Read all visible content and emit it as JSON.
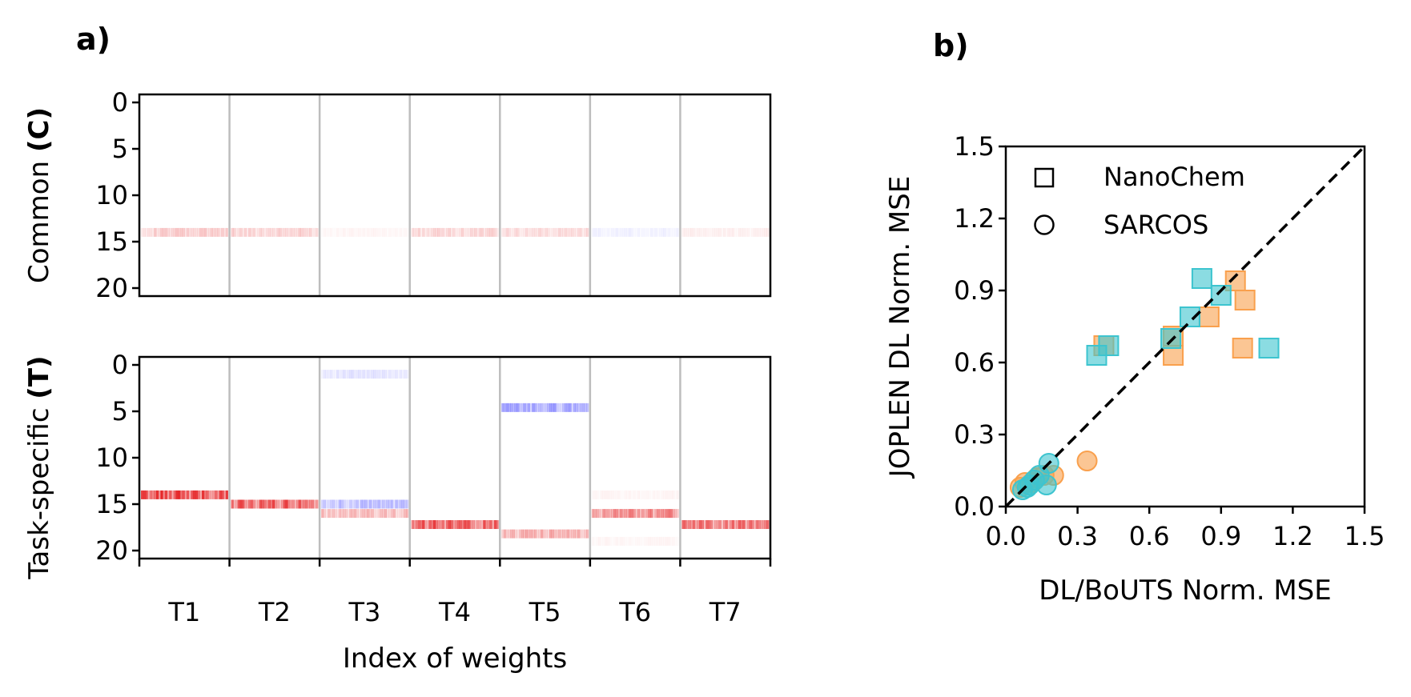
{
  "panel_labels": {
    "a": "a)",
    "b": "b)"
  },
  "chart_data": [
    {
      "id": "a",
      "type": "heatmap",
      "xlabel": "Index of weights",
      "group_labels": [
        "T1",
        "T2",
        "T3",
        "T4",
        "T5",
        "T6",
        "T7"
      ],
      "color_map": {
        "positive": "#e41a1c",
        "negative": "#3333ff",
        "zero": "#ffffff"
      },
      "subplots": [
        {
          "name": "common",
          "ylabel": {
            "prefix": "Common ",
            "symbol": "(C)"
          },
          "yticks": [
            "0",
            "5",
            "10",
            "15",
            "20"
          ],
          "ylim": [
            0,
            20
          ],
          "rows": [
            {
              "row": 14,
              "weights": [
                0.25,
                0.22,
                0.05,
                0.2,
                0.18,
                -0.08,
                0.08
              ]
            }
          ]
        },
        {
          "name": "task_specific",
          "ylabel": {
            "prefix": "Task-specific ",
            "symbol": "(T)"
          },
          "yticks": [
            "0",
            "5",
            "10",
            "15",
            "20"
          ],
          "ylim": [
            0,
            20
          ],
          "rows": [
            {
              "row": 1,
              "weights": [
                0,
                0,
                -0.15,
                0,
                0,
                0,
                0
              ]
            },
            {
              "row": 4.6,
              "weights": [
                0,
                0,
                0,
                0,
                -0.5,
                0,
                0
              ]
            },
            {
              "row": 14,
              "weights": [
                0.95,
                0,
                0,
                0,
                0,
                0.05,
                0
              ]
            },
            {
              "row": 15,
              "weights": [
                0,
                0.85,
                -0.35,
                0,
                0,
                0,
                0
              ]
            },
            {
              "row": 16,
              "weights": [
                0,
                0,
                0.35,
                0,
                0,
                0.6,
                0
              ]
            },
            {
              "row": 17.2,
              "weights": [
                0,
                0,
                0,
                0.85,
                0,
                0,
                0.7
              ]
            },
            {
              "row": 18.2,
              "weights": [
                0,
                0,
                0,
                0,
                0.4,
                0,
                0
              ]
            },
            {
              "row": 19,
              "weights": [
                0,
                0,
                0,
                0,
                0,
                0.05,
                0
              ]
            }
          ]
        }
      ]
    },
    {
      "id": "b",
      "type": "scatter",
      "xlabel": "DL/BoUTS Norm. MSE",
      "ylabel": "JOPLEN DL Norm. MSE",
      "xlim": [
        0,
        1.5
      ],
      "ylim": [
        0,
        1.5
      ],
      "xticks": [
        "0.0",
        "0.3",
        "0.6",
        "0.9",
        "1.2",
        "1.5"
      ],
      "yticks": [
        "0.0",
        "0.3",
        "0.6",
        "0.9",
        "1.2",
        "1.5"
      ],
      "diagonal": true,
      "legend": [
        {
          "marker": "square",
          "label": "NanoChem"
        },
        {
          "marker": "circle",
          "label": "SARCOS"
        }
      ],
      "series": [
        {
          "name": "NanoChem (orange)",
          "marker": "square",
          "color": "#f9a04d",
          "points": [
            [
              0.41,
              0.67
            ],
            [
              0.7,
              0.71
            ],
            [
              0.7,
              0.63
            ],
            [
              0.85,
              0.79
            ],
            [
              0.96,
              0.94
            ],
            [
              1.0,
              0.86
            ],
            [
              0.99,
              0.66
            ]
          ]
        },
        {
          "name": "NanoChem (cyan)",
          "marker": "square",
          "color": "#3dc4cf",
          "points": [
            [
              0.38,
              0.63
            ],
            [
              0.43,
              0.67
            ],
            [
              0.69,
              0.7
            ],
            [
              0.77,
              0.79
            ],
            [
              0.82,
              0.95
            ],
            [
              0.9,
              0.88
            ],
            [
              1.1,
              0.66
            ]
          ]
        },
        {
          "name": "SARCOS (orange)",
          "marker": "circle",
          "color": "#f9a04d",
          "points": [
            [
              0.06,
              0.08
            ],
            [
              0.08,
              0.1
            ],
            [
              0.11,
              0.1
            ],
            [
              0.13,
              0.12
            ],
            [
              0.16,
              0.13
            ],
            [
              0.2,
              0.13
            ],
            [
              0.34,
              0.19
            ]
          ]
        },
        {
          "name": "SARCOS (cyan)",
          "marker": "circle",
          "color": "#3dc4cf",
          "points": [
            [
              0.07,
              0.07
            ],
            [
              0.09,
              0.08
            ],
            [
              0.1,
              0.09
            ],
            [
              0.12,
              0.11
            ],
            [
              0.14,
              0.13
            ],
            [
              0.17,
              0.09
            ],
            [
              0.18,
              0.18
            ]
          ]
        }
      ]
    }
  ]
}
